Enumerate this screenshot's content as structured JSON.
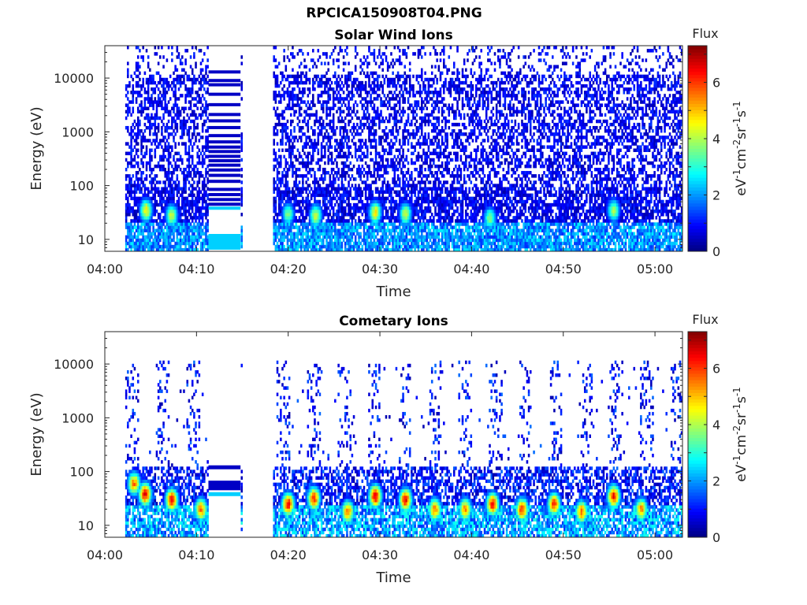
{
  "figure": {
    "filename": "RPCICA150908T04.PNG"
  },
  "chart_data": [
    {
      "type": "heatmap",
      "title": "Solar Wind Ions",
      "xlabel": "Time",
      "ylabel": "Energy (eV)",
      "x_ticks": [
        "04:00",
        "04:10",
        "04:20",
        "04:30",
        "04:40",
        "04:50",
        "05:00"
      ],
      "x_range_minutes": [
        0,
        63
      ],
      "y_scale": "log",
      "y_ticks": [
        "10",
        "100",
        "1000",
        "10000"
      ],
      "y_range_eV": [
        6,
        40000
      ],
      "colorbar": {
        "title": "Flux",
        "label": "eV-1cm-2sr-1s-1",
        "ticks": [
          "0",
          "2",
          "4",
          "6"
        ],
        "range": [
          0,
          7.3
        ],
        "colormap": "jet"
      },
      "data_gaps_minutes": [
        [
          0,
          2.2
        ],
        [
          15,
          18.3
        ]
      ],
      "scan_band_start_minute": 11.3,
      "scan_band_end_minute": 14.8,
      "scan_band_energies_eV": [
        9,
        38,
        45,
        55,
        68,
        85,
        120,
        155,
        195,
        240,
        290,
        350,
        430,
        520,
        650,
        850,
        1200,
        1600,
        2100,
        3200,
        5000,
        7500,
        9000,
        13000
      ],
      "peak_events": [
        {
          "minute": 4.5,
          "energy_eV": 35,
          "level": 5.0
        },
        {
          "minute": 7.3,
          "energy_eV": 28,
          "level": 4.5
        },
        {
          "minute": 20.0,
          "energy_eV": 30,
          "level": 4.0
        },
        {
          "minute": 23.0,
          "energy_eV": 28,
          "level": 4.6
        },
        {
          "minute": 29.5,
          "energy_eV": 32,
          "level": 5.0
        },
        {
          "minute": 32.8,
          "energy_eV": 30,
          "level": 4.5
        },
        {
          "minute": 42.0,
          "energy_eV": 25,
          "level": 4.0
        },
        {
          "minute": 55.5,
          "energy_eV": 35,
          "level": 4.3
        }
      ]
    },
    {
      "type": "heatmap",
      "title": "Cometary Ions",
      "xlabel": "Time",
      "ylabel": "Energy (eV)",
      "x_ticks": [
        "04:00",
        "04:10",
        "04:20",
        "04:30",
        "04:40",
        "04:50",
        "05:00"
      ],
      "x_range_minutes": [
        0,
        63
      ],
      "y_scale": "log",
      "y_ticks": [
        "10",
        "100",
        "1000",
        "10000"
      ],
      "y_range_eV": [
        6,
        40000
      ],
      "colorbar": {
        "title": "Flux",
        "label": "eV-1cm-2sr-1s-1",
        "ticks": [
          "0",
          "2",
          "4",
          "6"
        ],
        "range": [
          0,
          7.3
        ],
        "colormap": "jet"
      },
      "data_gaps_minutes": [
        [
          0,
          2.2
        ],
        [
          15,
          18.3
        ]
      ],
      "scan_band_start_minute": 11.3,
      "scan_band_end_minute": 14.8,
      "scan_band_energies_eV": [
        38,
        55,
        62,
        120
      ],
      "peak_events": [
        {
          "minute": 3.2,
          "energy_eV": 60,
          "level": 6.0
        },
        {
          "minute": 4.4,
          "energy_eV": 38,
          "level": 7.0
        },
        {
          "minute": 7.3,
          "energy_eV": 30,
          "level": 6.8
        },
        {
          "minute": 10.5,
          "energy_eV": 20,
          "level": 6.0
        },
        {
          "minute": 20.0,
          "energy_eV": 25,
          "level": 6.8
        },
        {
          "minute": 22.8,
          "energy_eV": 32,
          "level": 6.5
        },
        {
          "minute": 26.5,
          "energy_eV": 18,
          "level": 6.0
        },
        {
          "minute": 29.5,
          "energy_eV": 35,
          "level": 7.0
        },
        {
          "minute": 32.8,
          "energy_eV": 30,
          "level": 6.8
        },
        {
          "minute": 36.0,
          "energy_eV": 20,
          "level": 6.0
        },
        {
          "minute": 39.3,
          "energy_eV": 20,
          "level": 5.8
        },
        {
          "minute": 42.3,
          "energy_eV": 25,
          "level": 6.8
        },
        {
          "minute": 45.5,
          "energy_eV": 20,
          "level": 6.5
        },
        {
          "minute": 49.0,
          "energy_eV": 25,
          "level": 6.5
        },
        {
          "minute": 52.0,
          "energy_eV": 18,
          "level": 6.0
        },
        {
          "minute": 55.5,
          "energy_eV": 35,
          "level": 6.8
        },
        {
          "minute": 58.5,
          "energy_eV": 20,
          "level": 5.8
        }
      ]
    }
  ]
}
